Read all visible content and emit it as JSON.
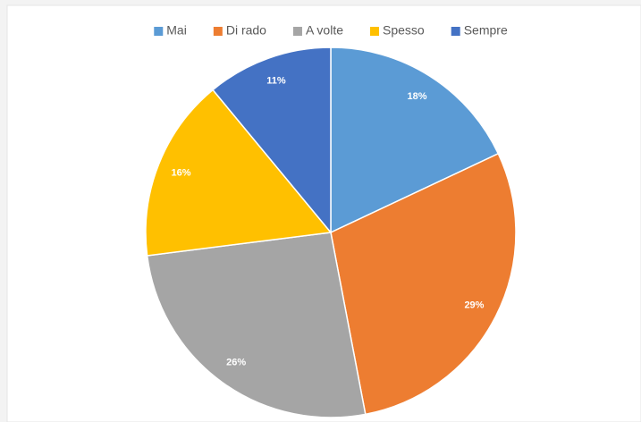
{
  "chart_data": {
    "type": "pie",
    "categories": [
      "Mai",
      "Di rado",
      "A volte",
      "Spesso",
      "Sempre"
    ],
    "values": [
      18,
      29,
      26,
      16,
      11
    ],
    "value_labels": [
      "18%",
      "29%",
      "26%",
      "16%",
      "11%"
    ],
    "colors": [
      "#5b9bd5",
      "#ed7d31",
      "#a5a5a5",
      "#ffc000",
      "#4472c4"
    ],
    "legend": "top"
  }
}
